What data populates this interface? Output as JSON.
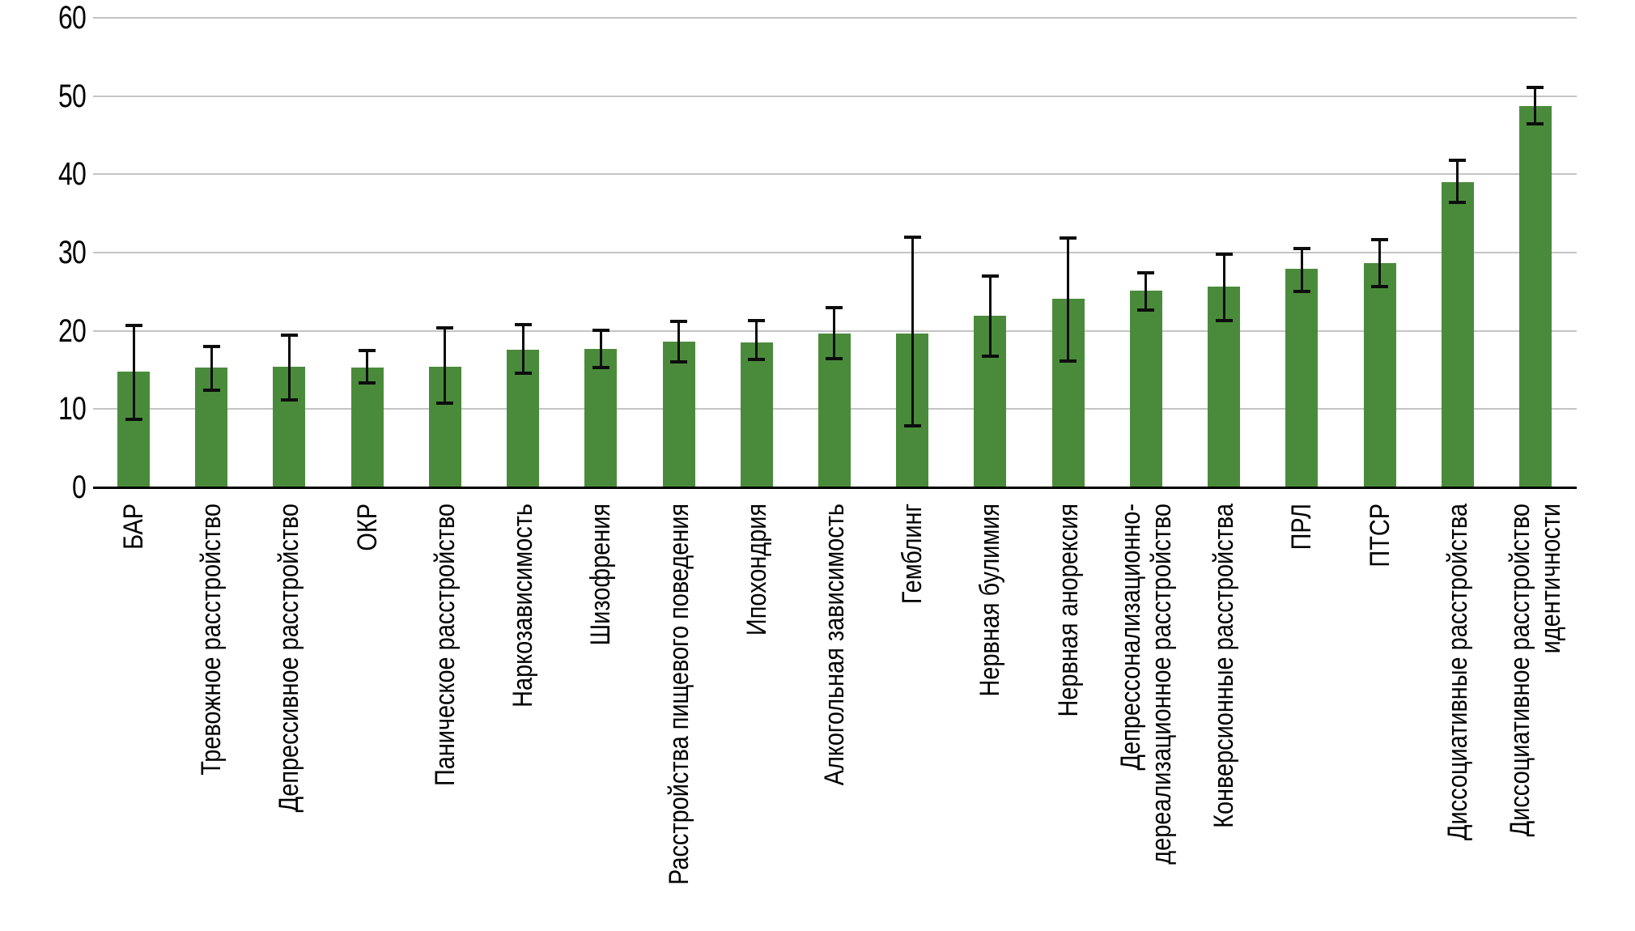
{
  "chart_data": {
    "type": "bar",
    "title": "",
    "xlabel": "",
    "ylabel": "",
    "ylim": [
      0,
      60
    ],
    "yticks": [
      0,
      10,
      20,
      30,
      40,
      50,
      60
    ],
    "grid": true,
    "legend_position": "none",
    "categories": [
      "БАР",
      "Тревожное расстройство",
      "Депрессивное расстройство",
      "ОКР",
      "Паническое расстройство",
      "Наркозависимость",
      "Шизофрения",
      "Расстройства пищевого поведения",
      "Ипохондрия",
      "Алкогольная зависимость",
      "Гемблинг",
      "Нервная булимия",
      "Нервная анорексия",
      "Депрессонализационно-\nдереализационное расстройство",
      "Конверсионные расстройства",
      "ПРЛ",
      "ПТСР",
      "Диссоциативные расстройства",
      "Диссоциативное расстройство\nидентичности"
    ],
    "values": [
      14.8,
      15.3,
      15.4,
      15.3,
      15.4,
      17.6,
      17.7,
      18.6,
      18.5,
      19.7,
      19.7,
      21.9,
      24.1,
      25.1,
      25.7,
      27.9,
      28.7,
      39.0,
      48.7
    ],
    "error_low": [
      8.7,
      12.4,
      11.2,
      13.3,
      10.8,
      14.6,
      15.3,
      16.0,
      16.3,
      16.4,
      7.9,
      16.8,
      16.1,
      22.7,
      21.3,
      25.0,
      25.7,
      36.4,
      46.4
    ],
    "error_high": [
      20.7,
      18.0,
      19.4,
      17.5,
      20.4,
      20.8,
      20.1,
      21.2,
      21.3,
      23.0,
      32.0,
      27.0,
      31.9,
      27.4,
      29.8,
      30.5,
      31.7,
      41.8,
      51.1
    ],
    "colors": {
      "bar": "#4a8b3b",
      "error_bar": "#0d0d0d",
      "gridline": "#c4c4c4",
      "axis": "#000000",
      "text": "#000000",
      "background": "#ffffff"
    }
  }
}
